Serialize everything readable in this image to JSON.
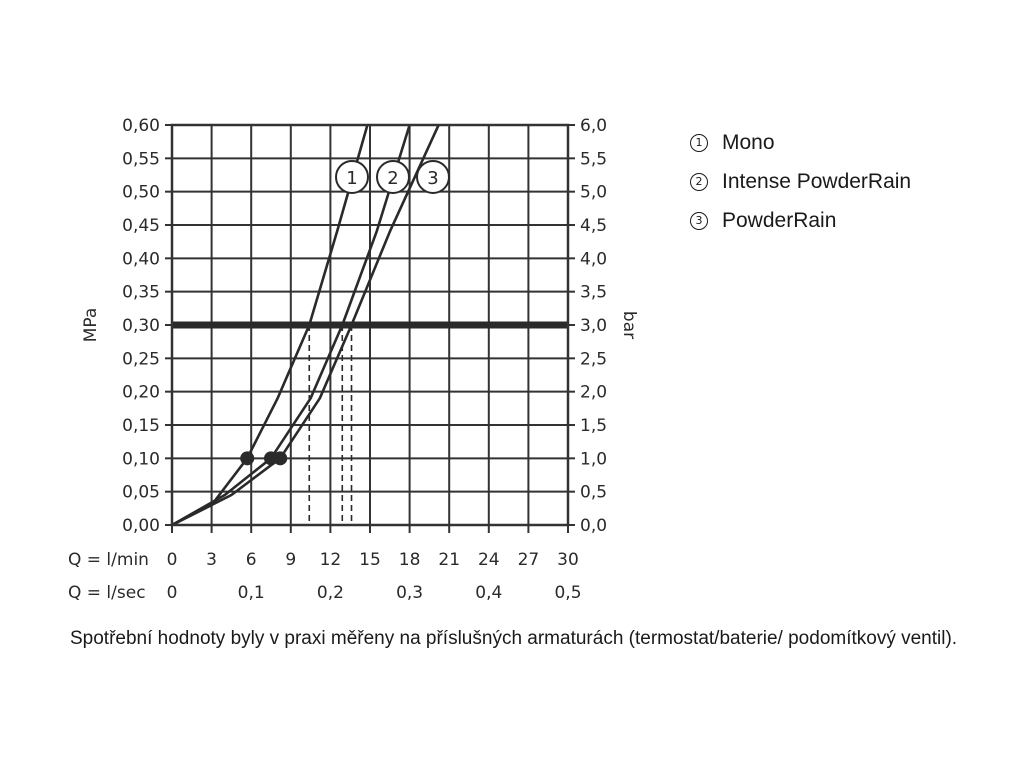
{
  "chart_data": {
    "type": "line",
    "ylabel_left": "MPa",
    "ylabel_right": "bar",
    "xlabel_lmin": "Q = l/min",
    "xlabel_lsec": "Q = l/sec",
    "xlim": [
      0,
      30
    ],
    "ylim": [
      0,
      0.6
    ],
    "grid": true,
    "legend_position": "top-right",
    "y_ticks_left": [
      "0,00",
      "0,05",
      "0,10",
      "0,15",
      "0,20",
      "0,25",
      "0,30",
      "0,35",
      "0,40",
      "0,45",
      "0,50",
      "0,55",
      "0,60"
    ],
    "y_ticks_right": [
      "0,0",
      "0,5",
      "1,0",
      "1,5",
      "2,0",
      "2,5",
      "3,0",
      "3,5",
      "4,0",
      "4,5",
      "5,0",
      "5,5",
      "6,0"
    ],
    "x_ticks_lmin": [
      "0",
      "3",
      "6",
      "9",
      "12",
      "15",
      "18",
      "21",
      "24",
      "27",
      "30"
    ],
    "x_ticks_lsec": [
      {
        "label": "0",
        "value": 0
      },
      {
        "label": "0,1",
        "value": 6
      },
      {
        "label": "0,2",
        "value": 12
      },
      {
        "label": "0,3",
        "value": 18
      },
      {
        "label": "0,4",
        "value": 24
      },
      {
        "label": "0,5",
        "value": 30
      }
    ],
    "reference_line": {
      "y": 0.3
    },
    "series": [
      {
        "name": "Mono",
        "marker": "1",
        "x": [
          0,
          3,
          5.7,
          8,
          10.4,
          12.5,
          14.8
        ],
        "y": [
          0,
          0.03,
          0.1,
          0.19,
          0.3,
          0.44,
          0.6
        ],
        "rated_point": {
          "x": 5.7,
          "y": 0.1
        }
      },
      {
        "name": "Intense PowderRain",
        "marker": "2",
        "x": [
          0,
          4,
          7.5,
          10.5,
          12.9,
          15.5,
          18
        ],
        "y": [
          0,
          0.045,
          0.1,
          0.19,
          0.3,
          0.44,
          0.6
        ],
        "rated_point": {
          "x": 7.5,
          "y": 0.1
        }
      },
      {
        "name": "PowderRain",
        "marker": "3",
        "x": [
          0,
          4.5,
          8.2,
          11.2,
          13.6,
          16.5,
          20.2
        ],
        "y": [
          0,
          0.045,
          0.1,
          0.19,
          0.3,
          0.44,
          0.6
        ],
        "rated_point": {
          "x": 8.2,
          "y": 0.1
        }
      }
    ]
  },
  "legend": [
    {
      "num": "1",
      "label": "Mono"
    },
    {
      "num": "2",
      "label": "Intense PowderRain"
    },
    {
      "num": "3",
      "label": "PowderRain"
    }
  ],
  "caption": "Spotřební hodnoty byly v praxi měřeny na příslušných armaturách (termostat/baterie/ podomítkový ventil).",
  "colors": {
    "ink": "#2a2a2a",
    "grid": "#333333",
    "reference": "#2a2a2a"
  }
}
